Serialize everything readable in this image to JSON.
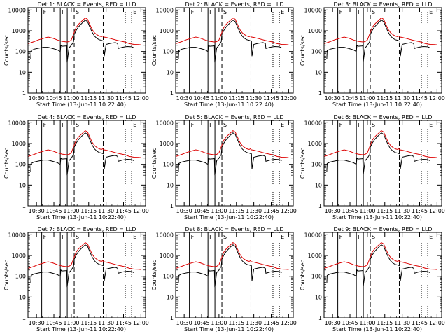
{
  "chart_data": {
    "type": "line",
    "grid_layout": "3x3",
    "colors": {
      "events": "#000000",
      "lld": "#dd0000",
      "frame": "#000000"
    },
    "shared": {
      "xlabel": "Start Time (13-Jun-11 10:22:40)",
      "ylabel": "Counts/sec",
      "x_ticks": [
        "10:30",
        "10:45",
        "11:00",
        "11:15",
        "11:30",
        "11:45",
        "12:00"
      ],
      "x_tick_minutes": [
        30,
        45,
        60,
        75,
        90,
        105,
        120
      ],
      "xlim_minutes": [
        22.67,
        124
      ],
      "y_ticks": [
        "1",
        "10",
        "100",
        "1000",
        "10000"
      ],
      "ylim": [
        1,
        13000
      ],
      "yscale": "log",
      "vlines": [
        {
          "minute": 34.5,
          "style": "solid",
          "label": "F"
        },
        {
          "minute": 50.5,
          "style": "solid",
          "label": "I"
        },
        {
          "minute": 56.5,
          "style": "solid",
          "label": ""
        },
        {
          "minute": 62.5,
          "style": "dashed",
          "label": "S"
        },
        {
          "minute": 87.5,
          "style": "dashed",
          "label": ""
        },
        {
          "minute": 106.5,
          "style": "dotted",
          "label": ""
        },
        {
          "minute": 112.0,
          "style": "dotted",
          "label": "E"
        }
      ]
    },
    "panels": [
      {
        "title": "Det 1: BLACK = Events, RED = LLD"
      },
      {
        "title": "Det 2: BLACK = Events, RED = LLD"
      },
      {
        "title": "Det 3: BLACK = Events, RED = LLD"
      },
      {
        "title": "Det 4: BLACK = Events, RED = LLD"
      },
      {
        "title": "Det 5: BLACK = Events, RED = LLD"
      },
      {
        "title": "Det 6: BLACK = Events, RED = LLD"
      },
      {
        "title": "Det 7: BLACK = Events, RED = LLD"
      },
      {
        "title": "Det 8: BLACK = Events, RED = LLD"
      },
      {
        "title": "Det 9: BLACK = Events, RED = LLD"
      }
    ],
    "series": [
      {
        "name": "LLD",
        "color": "#dd0000",
        "x": [
          23,
          28,
          32,
          36,
          40,
          44,
          48,
          52,
          56,
          58,
          60,
          62,
          64,
          66,
          68,
          70,
          72,
          74,
          76,
          78,
          80,
          82,
          84,
          86,
          87,
          88,
          90,
          94,
          100,
          106,
          110,
          114,
          118,
          120
        ],
        "values": [
          240,
          300,
          370,
          430,
          500,
          440,
          360,
          310,
          290,
          300,
          360,
          700,
          1400,
          2000,
          2600,
          3300,
          4200,
          3600,
          2000,
          1150,
          800,
          650,
          560,
          520,
          560,
          500,
          480,
          420,
          340,
          290,
          240,
          220,
          215,
          210
        ]
      },
      {
        "name": "Events",
        "color": "#000000",
        "x": [
          25,
          25.3,
          28,
          32,
          36,
          40,
          44,
          48,
          50.5,
          51,
          52,
          55,
          56,
          56.4,
          58,
          60,
          62,
          62.4,
          64,
          66,
          68,
          70,
          72,
          74,
          76,
          78,
          80,
          82,
          84,
          86,
          87,
          88,
          88.4,
          90,
          94,
          98,
          100,
          100.4,
          104,
          108,
          112,
          114
        ],
        "values": [
          45,
          110,
          130,
          145,
          160,
          160,
          140,
          120,
          100,
          200,
          180,
          185,
          190,
          30,
          150,
          200,
          300,
          640,
          1000,
          1500,
          2000,
          2600,
          3300,
          2800,
          1500,
          850,
          550,
          430,
          370,
          350,
          330,
          320,
          60,
          220,
          250,
          270,
          240,
          140,
          160,
          175,
          170,
          150
        ]
      }
    ]
  }
}
